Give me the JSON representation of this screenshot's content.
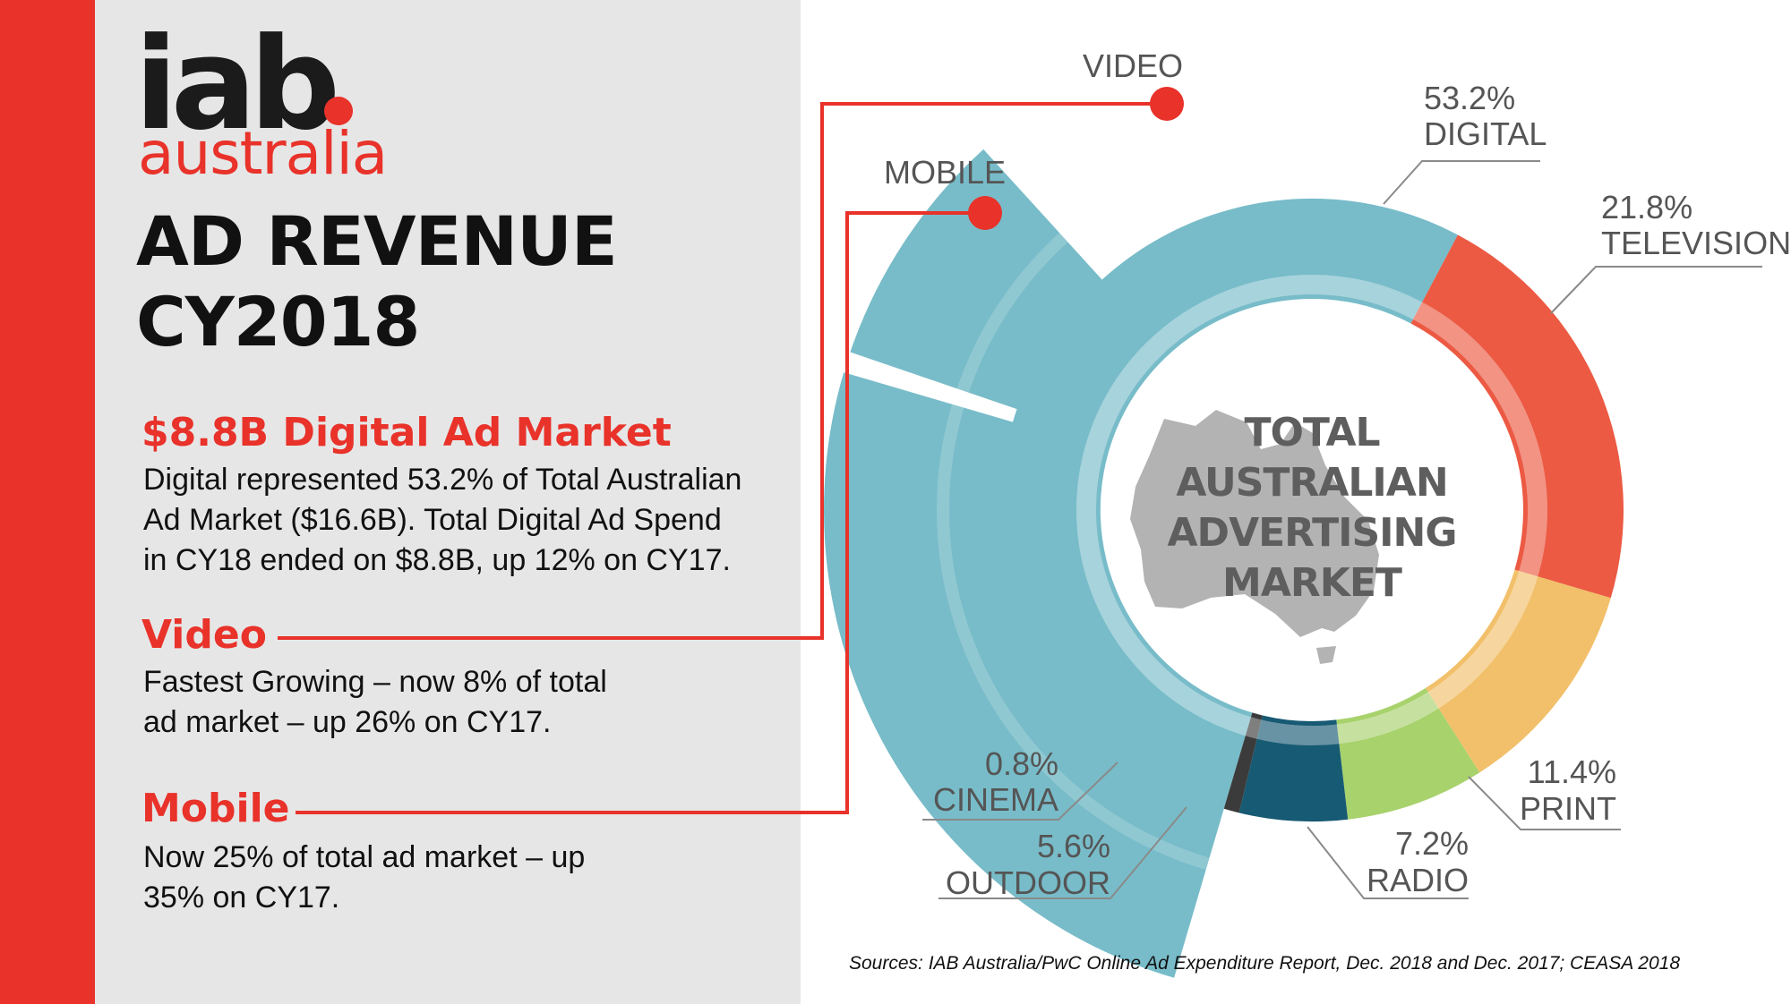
{
  "logo": {
    "iab": "iab",
    "sub": "australia"
  },
  "title": {
    "line1": "AD REVENUE",
    "line2": "CY2018"
  },
  "sections": [
    {
      "heading": "$8.8B Digital Ad Market",
      "lines": [
        "Digital represented 53.2% of Total Australian",
        "Ad Market ($16.6B). Total Digital Ad Spend",
        "in CY18 ended on $8.8B, up 12% on CY17."
      ]
    },
    {
      "heading": "Video",
      "lines": [
        "Fastest Growing – now 8% of total",
        "ad market – up 26% on CY17."
      ]
    },
    {
      "heading": "Mobile",
      "lines": [
        "Now 25% of total ad market – up",
        "35% on CY17."
      ]
    }
  ],
  "sources": "Sources: IAB Australia/PwC Online Ad Expenditure Report, Dec. 2018 and Dec. 2017; CEASA 2018",
  "colors": {
    "brand_red": "#e8322a",
    "digital": "#78bcc9",
    "television": "#ec5a43",
    "print": "#f2c06a",
    "radio": "#a8d26c",
    "outdoor": "#175a73",
    "cinema": "#3b3b3b",
    "map": "#9a9a9a"
  },
  "chart_data": {
    "type": "pie",
    "center_label": [
      "TOTAL",
      "AUSTRALIAN",
      "ADVERTISING",
      "MARKET"
    ],
    "slices": [
      {
        "pct": "53.2%",
        "name": "DIGITAL",
        "value": 53.2,
        "color": "#78bcc9"
      },
      {
        "pct": "21.8%",
        "name": "TELEVISION",
        "value": 21.8,
        "color": "#ec5a43"
      },
      {
        "pct": "11.4%",
        "name": "PRINT",
        "value": 11.4,
        "color": "#f2c06a"
      },
      {
        "pct": "7.2%",
        "name": "RADIO",
        "value": 7.2,
        "color": "#a8d26c"
      },
      {
        "pct": "5.6%",
        "name": "OUTDOOR",
        "value": 5.6,
        "color": "#175a73"
      },
      {
        "pct": "0.8%",
        "name": "CINEMA",
        "value": 0.8,
        "color": "#3b3b3b"
      }
    ],
    "sub_segments": [
      {
        "name": "VIDEO",
        "value": 8
      },
      {
        "name": "MOBILE",
        "value": 25
      }
    ]
  }
}
